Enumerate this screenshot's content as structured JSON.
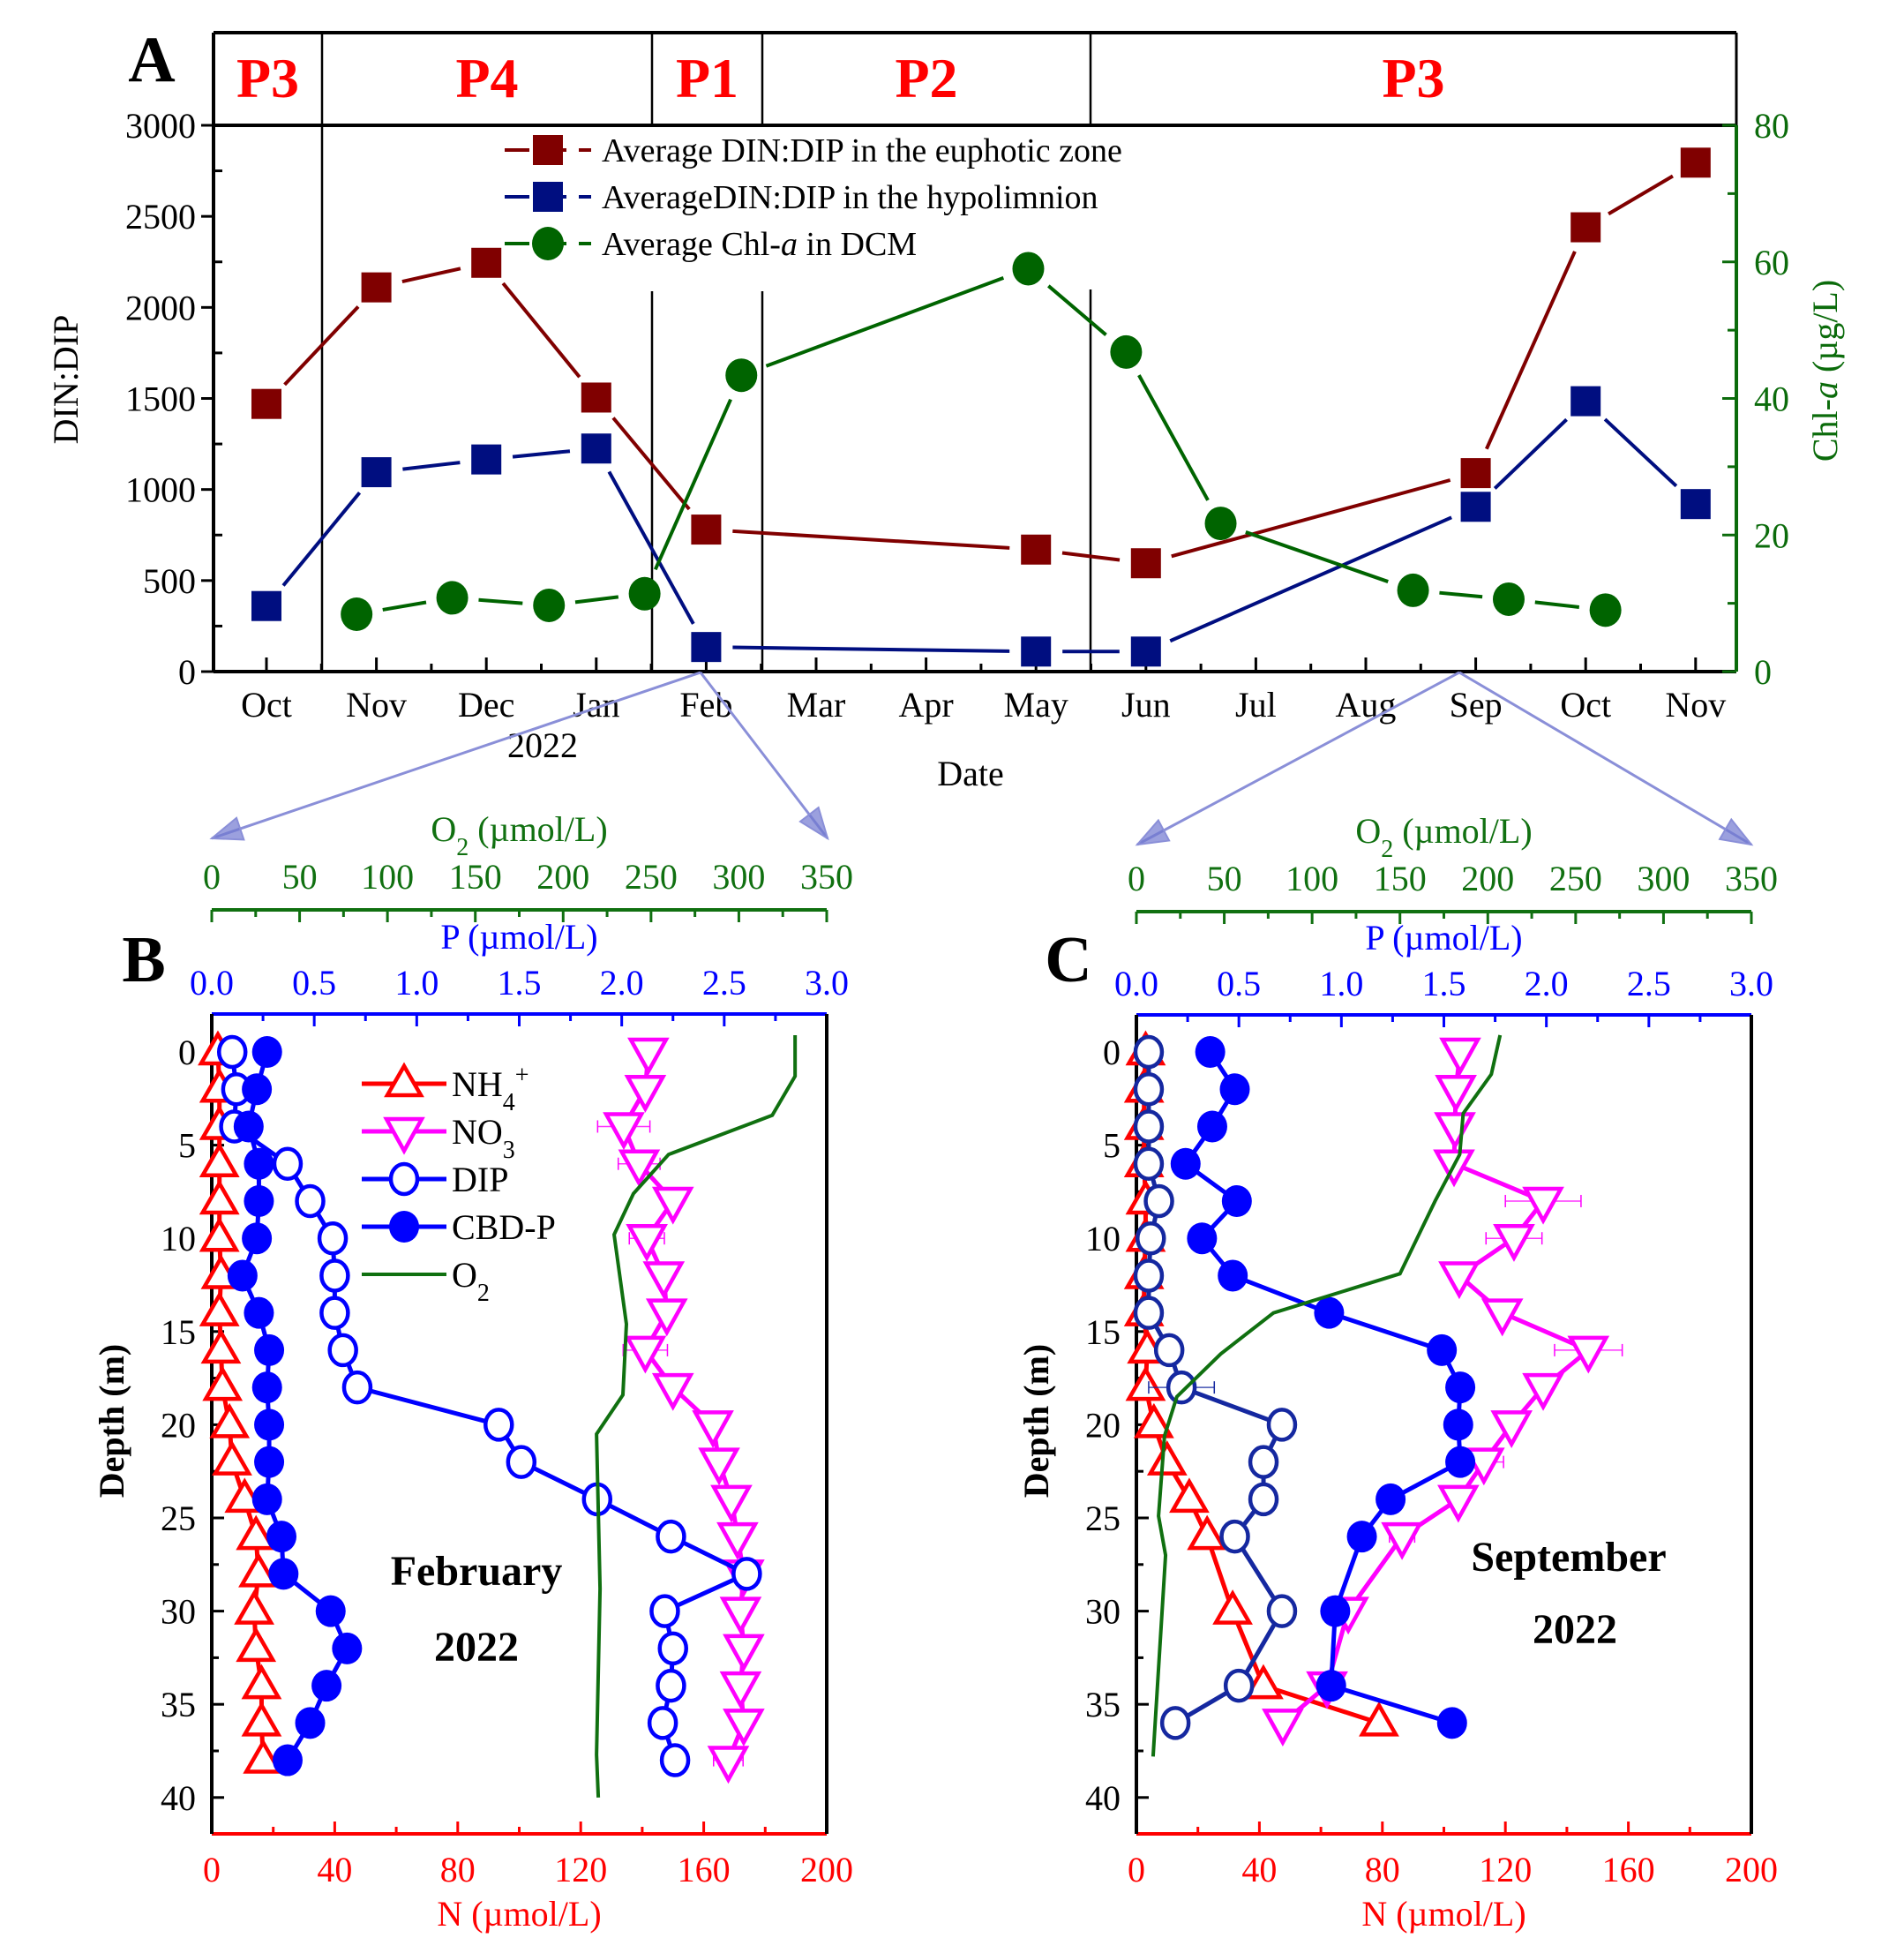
{
  "chart_data": [
    {
      "panel": "A",
      "type": "line",
      "panel_label": "A",
      "periods": [
        {
          "label": "P3",
          "from_month": 0,
          "to_month": 0.5
        },
        {
          "label": "P4",
          "from_month": 0.5,
          "to_month": 3.5
        },
        {
          "label": "P1",
          "from_month": 3.5,
          "to_month": 4.5
        },
        {
          "label": "P2",
          "from_month": 4.5,
          "to_month": 7.5
        },
        {
          "label": "P3",
          "from_month": 7.5,
          "to_month": 13.5
        }
      ],
      "period_color": "#ff0000",
      "x_categories": [
        "Oct",
        "Nov",
        "Dec",
        "Jan",
        "Feb",
        "Mar",
        "Apr",
        "May",
        "Jun",
        "Jul",
        "Aug",
        "Sep",
        "Oct",
        "Nov"
      ],
      "x_year_label": "2022",
      "xlabel": "Date",
      "ylabel": "DIN:DIP",
      "ylim": [
        0,
        3000
      ],
      "yticks": [
        0,
        500,
        1000,
        1500,
        2000,
        2500,
        3000
      ],
      "y2label_prefix": "Chl-",
      "y2label_italic": "a",
      "y2label_suffix": " (µg/L)",
      "y2lim": [
        0,
        80
      ],
      "y2ticks": [
        0,
        20,
        40,
        60,
        80
      ],
      "y2_color": "#0b6b0b",
      "series": [
        {
          "name": "Average DIN:DIP in the euphotic zone",
          "legend_prefix": "Average DIN:DIP in the euphotic zone",
          "axis": "left",
          "marker": "square",
          "color": "#800000",
          "x": [
            0,
            1,
            2,
            3,
            4,
            7,
            8,
            11,
            12,
            13
          ],
          "values": [
            1470,
            2110,
            2245,
            1505,
            780,
            670,
            595,
            1090,
            2440,
            2795
          ]
        },
        {
          "name": "AverageDIN:DIP in the hypolimnion",
          "legend_prefix": "AverageDIN:DIP in the hypolimnion",
          "axis": "left",
          "marker": "square",
          "color": "#000e80",
          "x": [
            0,
            1,
            2,
            3,
            4,
            7,
            8,
            11,
            12,
            13
          ],
          "values": [
            360,
            1095,
            1165,
            1225,
            135,
            110,
            110,
            905,
            1485,
            920
          ]
        },
        {
          "name": "Average Chl-a in DCM",
          "legend_prefix": "Average Chl-",
          "legend_italic": "a",
          "legend_suffix": " in DCM",
          "axis": "right",
          "marker": "circle",
          "color": "#006400",
          "x": [
            0.82,
            1.69,
            2.57,
            3.44,
            4.32,
            6.93,
            7.82,
            8.68,
            10.43,
            11.3,
            12.18
          ],
          "values": [
            8.4,
            10.8,
            9.7,
            11.4,
            43.4,
            59.0,
            46.8,
            21.7,
            11.9,
            10.6,
            9.0
          ]
        }
      ],
      "zoom_links": [
        {
          "from_month": 4,
          "to_panel": "B"
        },
        {
          "from_month": 11,
          "to_panel": "C"
        }
      ]
    },
    {
      "panel": "B",
      "type": "line",
      "panel_label": "B",
      "title_line1": "February",
      "title_line2": "2022",
      "ylabel": "Depth (m)",
      "ylim": [
        0,
        42
      ],
      "yticks": [
        0,
        5,
        10,
        15,
        20,
        25,
        30,
        35,
        40
      ],
      "x_o2_label_main": "O",
      "x_o2_label_sub": "2",
      "x_o2_label_unit": " (µmol/L)",
      "x_o2_lim": [
        0,
        350
      ],
      "x_o2_ticks": [
        0,
        50,
        100,
        150,
        200,
        250,
        300,
        350
      ],
      "x_p_label": "P (µmol/L)",
      "x_p_lim": [
        0,
        3.0
      ],
      "x_p_ticks": [
        "0.0",
        "0.5",
        "1.0",
        "1.5",
        "2.0",
        "2.5",
        "3.0"
      ],
      "x_n_label": "N (µmol/L)",
      "x_n_lim": [
        0,
        200
      ],
      "x_n_ticks": [
        0,
        40,
        80,
        120,
        160,
        200
      ],
      "legend": [
        {
          "label": "NH",
          "sub": "4",
          "sup": "+",
          "key": "NH4"
        },
        {
          "label": "NO",
          "sub": "3",
          "sup": "",
          "key": "NO3"
        },
        {
          "label": "DIP",
          "sub": "",
          "sup": "",
          "key": "DIP"
        },
        {
          "label": "CBD-P",
          "sub": "",
          "sup": "",
          "key": "CBDP"
        },
        {
          "label": "O",
          "sub": "2",
          "sup": "",
          "key": "O2"
        }
      ],
      "series": [
        {
          "key": "NH4",
          "name": "NH4+",
          "axis": "N",
          "marker": "triangle-up",
          "color": "#ff0000",
          "depth": [
            0,
            2,
            4,
            6,
            8,
            10,
            12,
            14,
            16,
            18,
            20,
            22,
            24,
            26,
            28,
            30,
            32,
            34,
            36,
            38
          ],
          "values": [
            2,
            2.5,
            2.5,
            2.5,
            2.5,
            2.5,
            3,
            2.5,
            3,
            3.5,
            5.8,
            6.6,
            10.7,
            14.4,
            15.2,
            13.8,
            14.4,
            16.2,
            16.2,
            16.7
          ]
        },
        {
          "key": "NO3",
          "name": "NO3",
          "axis": "N",
          "marker": "triangle-down",
          "color": "#ff00ff",
          "depth": [
            0,
            2,
            4,
            6,
            8,
            10,
            12,
            14,
            16,
            18,
            20,
            22,
            24,
            26,
            28,
            30,
            32,
            34,
            36,
            38
          ],
          "values": [
            142,
            141,
            134,
            139,
            150,
            141.5,
            147,
            148,
            141,
            150,
            163,
            165,
            169,
            171,
            173,
            172,
            173,
            172,
            173,
            168
          ],
          "errors": [
            1,
            1,
            8.5,
            6.8,
            1.5,
            5.7,
            1,
            1,
            7.2,
            1,
            1.5,
            1.5,
            1,
            1,
            1,
            1,
            1,
            1,
            1,
            4.8
          ]
        },
        {
          "key": "DIP",
          "name": "DIP",
          "axis": "P",
          "marker": "circle-open",
          "color": "#0000ff",
          "depth": [
            0,
            2,
            4,
            6,
            8,
            10,
            12,
            14,
            16,
            18,
            20,
            22,
            24,
            26,
            28,
            30,
            32,
            34,
            36,
            38
          ],
          "values": [
            0.1,
            0.12,
            0.11,
            0.37,
            0.48,
            0.59,
            0.6,
            0.6,
            0.64,
            0.71,
            1.4,
            1.51,
            1.88,
            2.24,
            2.61,
            2.21,
            2.25,
            2.24,
            2.2,
            2.26
          ],
          "errors": [
            0.02,
            0.02,
            0.02,
            0.02,
            0.02,
            0.02,
            0.02,
            0.02,
            0.02,
            0.02,
            0.02,
            0.02,
            0.02,
            0.02,
            0.02,
            0.01,
            0.02,
            0.03,
            0.05,
            0.03
          ]
        },
        {
          "key": "CBDP",
          "name": "CBD-P",
          "axis": "P",
          "marker": "circle-filled",
          "color": "#0000ff",
          "depth": [
            0,
            2,
            4,
            6,
            8,
            10,
            12,
            14,
            16,
            18,
            20,
            22,
            24,
            26,
            28,
            30,
            32,
            34,
            36,
            38
          ],
          "values": [
            0.27,
            0.22,
            0.18,
            0.23,
            0.23,
            0.22,
            0.15,
            0.23,
            0.28,
            0.27,
            0.28,
            0.28,
            0.27,
            0.34,
            0.35,
            0.58,
            0.66,
            0.56,
            0.48,
            0.37
          ]
        },
        {
          "key": "O2",
          "name": "O2",
          "axis": "O2",
          "marker": "none",
          "color": "#107010",
          "depth": [
            -0.9,
            1.3,
            3.4,
            5.5,
            7.6,
            9.8,
            14.6,
            18.4,
            20.5,
            28.8,
            37.7,
            40
          ],
          "values": [
            332,
            332,
            319,
            260,
            240,
            229,
            236,
            234,
            219,
            221,
            219,
            220
          ]
        }
      ]
    },
    {
      "panel": "C",
      "type": "line",
      "panel_label": "C",
      "title_line1": "September",
      "title_line2": "2022",
      "ylabel": "Depth (m)",
      "ylim": [
        0,
        42
      ],
      "yticks": [
        0,
        5,
        10,
        15,
        20,
        25,
        30,
        35,
        40
      ],
      "x_o2_label_main": "O",
      "x_o2_label_sub": "2",
      "x_o2_label_unit": " (µmol/L)",
      "x_o2_lim": [
        0,
        350
      ],
      "x_o2_ticks": [
        0,
        50,
        100,
        150,
        200,
        250,
        300,
        350
      ],
      "x_p_label": "P (µmol/L)",
      "x_p_lim": [
        0,
        3.0
      ],
      "x_p_ticks": [
        "0.0",
        "0.5",
        "1.0",
        "1.5",
        "2.0",
        "2.5",
        "3.0"
      ],
      "x_n_label": "N (µmol/L)",
      "x_n_lim": [
        0,
        200
      ],
      "x_n_ticks": [
        0,
        40,
        80,
        120,
        160,
        200
      ],
      "series": [
        {
          "key": "NH4",
          "name": "NH4+",
          "axis": "N",
          "marker": "triangle-up",
          "color": "#ff0000",
          "depth": [
            0,
            2,
            4,
            6,
            8,
            10,
            12,
            14,
            16,
            18,
            20,
            22,
            24,
            26,
            30,
            34,
            36
          ],
          "values": [
            3,
            2.5,
            2.5,
            2.5,
            3,
            3,
            2.5,
            2.5,
            3.5,
            3,
            5.7,
            10,
            17.2,
            23,
            31.3,
            41.3,
            78.9
          ]
        },
        {
          "key": "NO3",
          "name": "NO3",
          "axis": "N",
          "marker": "triangle-down",
          "color": "#ff00ff",
          "depth": [
            0,
            2,
            4,
            6,
            8,
            10,
            12,
            14,
            16,
            18,
            20,
            22,
            24,
            26,
            30,
            34,
            36
          ],
          "values": [
            105.3,
            103.9,
            103.6,
            103.3,
            132.3,
            122.8,
            105,
            119,
            147,
            132.3,
            122,
            113,
            104.7,
            86.4,
            68.9,
            62,
            47.6
          ],
          "errors": [
            1,
            1,
            1,
            1,
            12.3,
            9.1,
            1,
            1,
            11,
            1,
            1.5,
            6.4,
            3,
            4.1,
            2,
            1,
            1
          ]
        },
        {
          "key": "DIP",
          "name": "DIP",
          "axis": "P",
          "marker": "circle-open",
          "color": "#1528a0",
          "depth": [
            0,
            2,
            4,
            6,
            8,
            10,
            12,
            14,
            16,
            18,
            20,
            22,
            24,
            26,
            30,
            34,
            36
          ],
          "values": [
            0.06,
            0.06,
            0.06,
            0.06,
            0.11,
            0.07,
            0.06,
            0.06,
            0.16,
            0.22,
            0.71,
            0.62,
            0.62,
            0.48,
            0.71,
            0.5,
            0.19
          ],
          "errors": [
            0.01,
            0.01,
            0.01,
            0.01,
            0.01,
            0.02,
            0.01,
            0.02,
            0.05,
            0.16,
            0.05,
            0.03,
            0.03,
            0.03,
            0.01,
            0.02,
            0.02
          ]
        },
        {
          "key": "CBDP",
          "name": "CBD-P",
          "axis": "P",
          "marker": "circle-filled",
          "color": "#0000ff",
          "depth": [
            0,
            2,
            4,
            6,
            8,
            10,
            12,
            14,
            16,
            18,
            20,
            22,
            24,
            26,
            30,
            34,
            36
          ],
          "values": [
            0.36,
            0.48,
            0.37,
            0.24,
            0.49,
            0.32,
            0.47,
            0.94,
            1.49,
            1.58,
            1.57,
            1.58,
            1.24,
            1.1,
            0.97,
            0.95,
            1.54
          ]
        },
        {
          "key": "O2",
          "name": "O2",
          "axis": "O2",
          "marker": "none",
          "color": "#107010",
          "depth": [
            -0.9,
            1.2,
            3.3,
            5.5,
            8.0,
            11.9,
            14.0,
            16.2,
            18.5,
            20.6,
            24.9,
            27.0,
            37.8
          ],
          "values": [
            207,
            202,
            186,
            184,
            170,
            150,
            78,
            48,
            23,
            16,
            12.6,
            16.6,
            9.5
          ]
        }
      ]
    }
  ]
}
